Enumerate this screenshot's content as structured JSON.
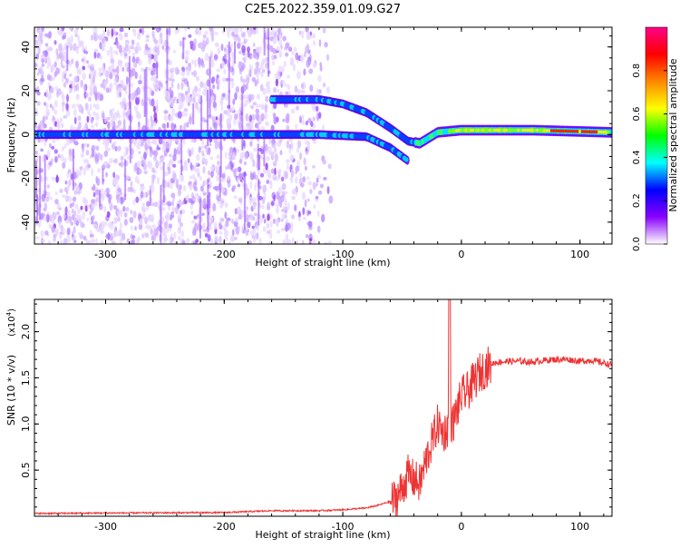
{
  "title": "C2E5.2022.359.01.09.G27",
  "chart_data": [
    {
      "type": "heatmap",
      "xlabel": "Height of straight line (km)",
      "ylabel": "Frequency (Hz)",
      "xlim": [
        -360,
        127
      ],
      "ylim": [
        -50,
        49
      ],
      "xticks": [
        -300,
        -200,
        -100,
        0,
        100
      ],
      "yticks": [
        -40,
        -20,
        0,
        20,
        40
      ],
      "colorbar": {
        "label": "Normalized spectral amplitude",
        "range": [
          0.0,
          1.0
        ],
        "ticks": [
          0.0,
          0.2,
          0.4,
          0.6,
          0.8
        ],
        "tick_labels": [
          "0.0",
          "0.2",
          "0.4",
          "0.6",
          "0.8"
        ],
        "colors": [
          "#ffffff",
          "#8800ff",
          "#0000ff",
          "#00ffff",
          "#00ff00",
          "#ffff00",
          "#ff8800",
          "#ff0000",
          "#ff0088"
        ]
      },
      "ridges": [
        {
          "points": [
            [
              -360,
              0
            ],
            [
              -160,
              0
            ],
            [
              -120,
              0
            ],
            [
              -80,
              -1
            ],
            [
              -60,
              -6
            ],
            [
              -45,
              -12
            ]
          ]
        },
        {
          "points": [
            [
              -160,
              16
            ],
            [
              -120,
              16
            ],
            [
              -100,
              14
            ],
            [
              -80,
              10
            ],
            [
              -60,
              3
            ],
            [
              -45,
              -3
            ],
            [
              -35,
              -4
            ],
            [
              -20,
              1
            ],
            [
              0,
              2
            ],
            [
              60,
              2
            ],
            [
              127,
              1
            ]
          ]
        }
      ]
    },
    {
      "type": "line",
      "xlabel": "Height of straight line (km)",
      "ylabel": "SNR (10 * v/v)",
      "y_multiplier": "(x10",
      "y_multiplier_exp": "4",
      "y_multiplier_close": ")",
      "xlim": [
        -360,
        127
      ],
      "ylim": [
        0,
        2.35
      ],
      "xticks": [
        -300,
        -200,
        -100,
        0,
        100
      ],
      "yticks": [
        0.5,
        1.0,
        1.5,
        2.0
      ],
      "ytick_labels": [
        "0.5",
        "1.0",
        "1.5",
        "2.0"
      ],
      "color": "#ee3333",
      "series": [
        {
          "x": [
            -360,
            -300,
            -200,
            -160,
            -120,
            -100,
            -80,
            -70,
            -60,
            -55,
            -50,
            -45,
            -40,
            -35,
            -30,
            -25,
            -20,
            -15,
            -12,
            -10,
            -7,
            -5,
            0,
            5,
            10,
            15,
            20,
            25,
            30,
            40,
            50,
            60,
            70,
            80,
            90,
            100,
            110,
            120,
            127
          ],
          "y": [
            0.03,
            0.035,
            0.04,
            0.06,
            0.06,
            0.07,
            0.09,
            0.12,
            0.16,
            0.2,
            0.3,
            0.45,
            0.4,
            0.35,
            0.6,
            0.8,
            1.0,
            0.9,
            0.95,
            1.05,
            1.0,
            1.1,
            1.3,
            1.35,
            1.45,
            1.55,
            1.6,
            1.65,
            1.67,
            1.68,
            1.68,
            1.67,
            1.69,
            1.7,
            1.7,
            1.68,
            1.69,
            1.66,
            1.64
          ]
        }
      ]
    }
  ]
}
